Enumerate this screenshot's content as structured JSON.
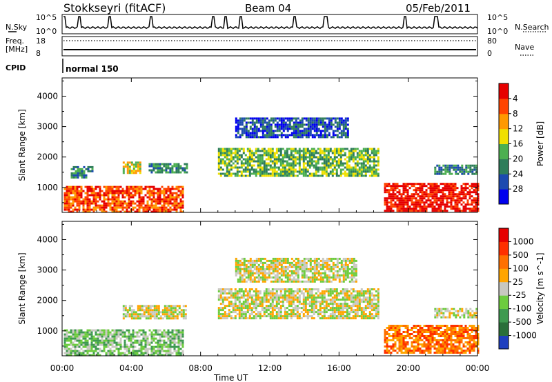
{
  "header": {
    "station": "Stokkseyri (fitACF)",
    "beam": "Beam 04",
    "date": "05/Feb/2011"
  },
  "top_panels": {
    "nsky_label": "N.Sky",
    "nsearch_label": "N.Search",
    "nsky_ticks": [
      "10^5",
      "10^0"
    ],
    "nsearch_ticks": [
      "10^5",
      "10^0"
    ],
    "freq_label_1": "Freq.",
    "freq_label_2": "[MHz]",
    "freq_ticks": [
      "18",
      "8"
    ],
    "nave_label": "Nave",
    "nave_ticks": [
      "80",
      "0"
    ],
    "cpid_label": "CPID",
    "cpid_value": "normal 150"
  },
  "chart_data": [
    {
      "type": "heatmap",
      "panel": "power",
      "ylabel": "Slant Range [km]",
      "yticks": [
        1000,
        2000,
        3000,
        4000
      ],
      "ylim": [
        180,
        4600
      ],
      "xlabel": "Time UT",
      "xticks": [
        "00:00",
        "04:00",
        "08:00",
        "12:00",
        "16:00",
        "20:00",
        "00:00"
      ],
      "xlim_hours": [
        0,
        24
      ],
      "colorbar": {
        "label": "Power [dB]",
        "ticks": [
          "4",
          "8",
          "12",
          "16",
          "20",
          "24",
          "28"
        ],
        "colors": [
          "#0000ee",
          "#1c4ab0",
          "#2e7d5a",
          "#4caf50",
          "#f0e000",
          "#ff9900",
          "#ff4400",
          "#e60000"
        ]
      },
      "regions": [
        {
          "t0": 0.1,
          "t1": 7.0,
          "r0": 200,
          "r1": 1050,
          "level": 6
        },
        {
          "t0": 0.5,
          "t1": 1.8,
          "r0": 1300,
          "r1": 1700,
          "level": 2
        },
        {
          "t0": 3.5,
          "t1": 4.5,
          "r0": 1450,
          "r1": 1850,
          "level": 4
        },
        {
          "t0": 5.0,
          "t1": 7.2,
          "r0": 1500,
          "r1": 1800,
          "level": 2
        },
        {
          "t0": 9.0,
          "t1": 18.3,
          "r0": 1350,
          "r1": 2300,
          "level": 3
        },
        {
          "t0": 10.0,
          "t1": 16.5,
          "r0": 2650,
          "r1": 3300,
          "level": 1
        },
        {
          "t0": 18.6,
          "t1": 24.0,
          "r0": 250,
          "r1": 1150,
          "level": 7
        },
        {
          "t0": 21.5,
          "t1": 24.0,
          "r0": 1450,
          "r1": 1750,
          "level": 2
        }
      ]
    },
    {
      "type": "heatmap",
      "panel": "velocity",
      "ylabel": "Slant Range [km]",
      "yticks": [
        1000,
        2000,
        3000,
        4000
      ],
      "ylim": [
        180,
        4600
      ],
      "xlabel": "Time UT",
      "xticks": [
        "00:00",
        "04:00",
        "08:00",
        "12:00",
        "16:00",
        "20:00",
        "00:00"
      ],
      "xlim_hours": [
        0,
        24
      ],
      "colorbar": {
        "label": "Velocity [m s^-1]",
        "ticks": [
          "1000",
          "500",
          "100",
          "25",
          "-25",
          "-100",
          "-500",
          "-1000"
        ],
        "colors": [
          "#1f3fbf",
          "#2a6f3a",
          "#3e9a50",
          "#6dcc3e",
          "#c8c8c0",
          "#ffa500",
          "#ff7000",
          "#ff3000",
          "#e60000"
        ]
      },
      "regions": [
        {
          "t0": 0.1,
          "t1": 7.0,
          "r0": 200,
          "r1": 1050,
          "level": 3
        },
        {
          "t0": 3.5,
          "t1": 7.2,
          "r0": 1400,
          "r1": 1850,
          "level": 4
        },
        {
          "t0": 9.0,
          "t1": 18.3,
          "r0": 1400,
          "r1": 2400,
          "level": 4
        },
        {
          "t0": 10.0,
          "t1": 17.0,
          "r0": 2600,
          "r1": 3400,
          "level": 4
        },
        {
          "t0": 18.6,
          "t1": 24.0,
          "r0": 250,
          "r1": 1200,
          "level": 6
        },
        {
          "t0": 21.5,
          "t1": 24.0,
          "r0": 1450,
          "r1": 1750,
          "level": 4
        }
      ]
    }
  ]
}
